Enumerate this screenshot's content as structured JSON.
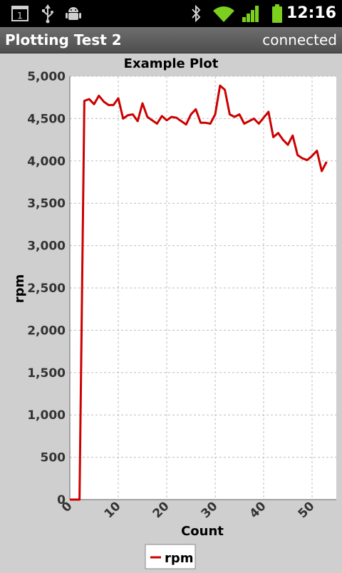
{
  "status_bar": {
    "time": "12:16",
    "notification_count": "1",
    "icons": [
      "notification-icon",
      "usb-icon",
      "android-debug-icon",
      "bluetooth-icon",
      "wifi-icon",
      "signal-icon",
      "battery-icon"
    ]
  },
  "app": {
    "title": "Plotting Test 2",
    "connection_status": "connected"
  },
  "colors": {
    "series": "#cc0000",
    "background": "#cfcfcf",
    "plot_area": "#ffffff",
    "grid": "#bdbdbd"
  },
  "chart_data": {
    "type": "line",
    "title": "Example Plot",
    "xlabel": "Count",
    "ylabel": "rpm",
    "xlim": [
      0,
      55
    ],
    "ylim": [
      0,
      5000
    ],
    "xticks": [
      0,
      10,
      20,
      30,
      40,
      50
    ],
    "xtick_labels": [
      "0",
      "10",
      "20",
      "30",
      "40",
      "50"
    ],
    "yticks": [
      0,
      500,
      1000,
      1500,
      2000,
      2500,
      3000,
      3500,
      4000,
      4500,
      5000
    ],
    "ytick_labels": [
      "0",
      "500",
      "1,000",
      "1,500",
      "2,000",
      "2,500",
      "3,000",
      "3,500",
      "4,000",
      "4,500",
      "5,000"
    ],
    "grid": true,
    "legend_position": "bottom-center",
    "series": [
      {
        "name": "rpm",
        "x": [
          0,
          1,
          2,
          3,
          4,
          5,
          6,
          7,
          8,
          9,
          10,
          11,
          12,
          13,
          14,
          15,
          16,
          17,
          18,
          19,
          20,
          21,
          22,
          23,
          24,
          25,
          26,
          27,
          28,
          29,
          30,
          31,
          32,
          33,
          34,
          35,
          36,
          37,
          38,
          39,
          40,
          41,
          42,
          43,
          44,
          45,
          46,
          47,
          48,
          49,
          50,
          51,
          52,
          53
        ],
        "values": [
          0,
          0,
          0,
          4710,
          4730,
          4670,
          4770,
          4700,
          4660,
          4660,
          4740,
          4500,
          4540,
          4550,
          4470,
          4680,
          4520,
          4480,
          4440,
          4530,
          4480,
          4520,
          4510,
          4470,
          4430,
          4550,
          4610,
          4450,
          4450,
          4440,
          4550,
          4890,
          4840,
          4550,
          4520,
          4550,
          4440,
          4470,
          4500,
          4440,
          4510,
          4580,
          4280,
          4330,
          4250,
          4190,
          4300,
          4070,
          4030,
          4010,
          4060,
          4120,
          3880,
          3990
        ]
      }
    ]
  }
}
